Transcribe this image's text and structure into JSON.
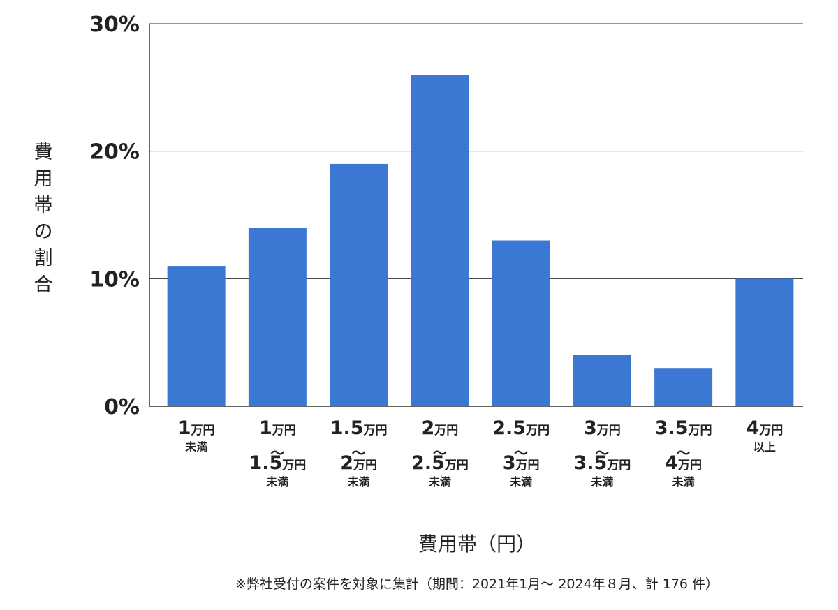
{
  "chart_data": {
    "type": "bar",
    "categories": [
      [
        "1万円",
        "未満"
      ],
      [
        "1万円",
        "〜",
        "1.5万円",
        "未満"
      ],
      [
        "1.5万円",
        "〜",
        "2万円",
        "未満"
      ],
      [
        "2万円",
        "〜",
        "2.5万円",
        "未満"
      ],
      [
        "2.5万円",
        "〜",
        "3万円",
        "未満"
      ],
      [
        "3万円",
        "〜",
        "3.5万円",
        "未満"
      ],
      [
        "3.5万円",
        "〜",
        "4万円",
        "未満"
      ],
      [
        "4万円",
        "以上"
      ]
    ],
    "values": [
      11,
      14,
      19,
      26,
      13,
      4,
      3,
      10
    ],
    "unit": "%",
    "ylim": [
      0,
      30
    ],
    "yticks": [
      0,
      10,
      20,
      30
    ],
    "ytick_labels": [
      "0%",
      "10%",
      "20%",
      "30%"
    ],
    "ylabel": "費用帯の割合",
    "xlabel": "費用帯（円）",
    "footnote": "※弊社受付の案件を対象に集計（期間：2021年1月〜 2024年８月、計 176 件）",
    "grid": true,
    "bar_color": "#3b78d4",
    "grid_color": "#333333"
  }
}
